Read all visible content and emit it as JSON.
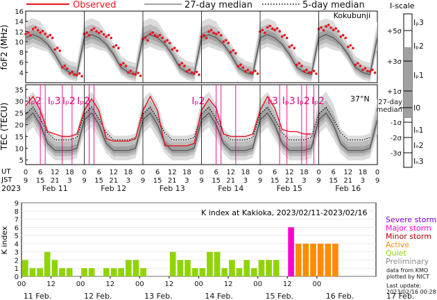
{
  "colors": {
    "observed": "#e8141c",
    "median27": "#444444",
    "band_light": "#dcdcdc",
    "band_mid": "#bdbdbd",
    "band_dark": "#a0a0a0",
    "magenta": "#e5007e",
    "kp_quiet": "#8fd400",
    "kp_active": "#ff8c00",
    "kp_major": "#ff00cc",
    "severe": "#7a00d6",
    "major": "#ff00cc",
    "minor": "#aa0000",
    "active": "#ff8c00",
    "quiet": "#8fd400",
    "prelim": "#888888"
  },
  "legend": {
    "observed": "Observed",
    "median27": "27-day median",
    "median5": "5-day median"
  },
  "top": {
    "station": "Kokubunji",
    "ylabel": "foF2 (MHz)",
    "yticks": [
      "4",
      "6",
      "8",
      "10",
      "12",
      "14",
      "16"
    ]
  },
  "mid": {
    "ylabel": "TEC (TECU)",
    "latitude": "37°N",
    "yticks": [
      "5",
      "10",
      "15",
      "20",
      "25",
      "30",
      "35"
    ],
    "event_labels": [
      "Iₚ2",
      "Iₚ3",
      "Iₚ2",
      "Iₚ2",
      "Iₚ2",
      "Iₗ3",
      "Iₚ3",
      "Iₚ2",
      "Iₚ2"
    ]
  },
  "time_axis": {
    "ut_label": "UT",
    "jst_label": "JST",
    "year": "2023",
    "ut_ticks": [
      "0",
      "6",
      "12",
      "18",
      "0",
      "6",
      "12",
      "18",
      "0",
      "6",
      "12",
      "18",
      "0",
      "6",
      "12",
      "18",
      "0",
      "6",
      "12",
      "18",
      "0",
      "6",
      "12",
      "18",
      "0"
    ],
    "jst_ticks": [
      "9",
      "15",
      "21",
      "3",
      "9",
      "15",
      "21",
      "3",
      "9",
      "15",
      "21",
      "3",
      "9",
      "15",
      "21",
      "3",
      "9",
      "15",
      "21",
      "3",
      "9",
      "15",
      "21",
      "3",
      "9"
    ],
    "days": [
      "Feb 11",
      "Feb 12",
      "Feb 13",
      "Feb 14",
      "Feb 15",
      "Feb 16"
    ]
  },
  "iscale": {
    "title": "I-scale",
    "labels": [
      "+5σ",
      "+3σ",
      "+1σ",
      "-1σ",
      "-2σ",
      "-3σ"
    ],
    "median": "27-day\nmedian",
    "bands": [
      "Iₚ3",
      "Iₚ2",
      "Iₚ1",
      "I0",
      "Iₙ1",
      "Iₙ2",
      "Iₙ3"
    ]
  },
  "kindex": {
    "title": "K index at Kakioka, 2023/02/11-2023/02/16",
    "ylabel": "K index",
    "yticks": [
      "0",
      "1",
      "2",
      "3",
      "4",
      "5",
      "6",
      "7",
      "8",
      "9"
    ],
    "xticks_hours": [
      "00",
      "12",
      "00",
      "12",
      "00",
      "12",
      "00",
      "12",
      "00",
      "12",
      "00"
    ],
    "dates": [
      "11 Feb.",
      "12 Feb.",
      "13 Feb.",
      "14 Feb.",
      "15 Feb.",
      "16 Feb.",
      "17 Feb."
    ],
    "legend": [
      "Severe storm",
      "Major storm",
      "Minor storm",
      "Active",
      "Quiet",
      "Preliminary"
    ],
    "source": "data from KMO\nplotted by NICT",
    "updated": "Last update:\n2023/02/16 00:28 UT"
  },
  "chart_data": [
    {
      "type": "line",
      "title": "foF2 (MHz)",
      "x": "UT hours since 2023-02-11 00:00",
      "series": [
        {
          "name": "Observed",
          "x": [
            0,
            3,
            6,
            9,
            12,
            15,
            18,
            21,
            24,
            27,
            30,
            33,
            36,
            39,
            42,
            45,
            48,
            51,
            54,
            57,
            60,
            63,
            66,
            69,
            72,
            75,
            78,
            81,
            84,
            87,
            90,
            93,
            96,
            99,
            102,
            105,
            108,
            111,
            114,
            117,
            120,
            123,
            126,
            129,
            132,
            135,
            138,
            141
          ],
          "values": [
            11.5,
            12.5,
            11.8,
            11,
            8.5,
            5,
            3.8,
            3.5,
            11.5,
            12.3,
            11.7,
            11,
            9,
            5.5,
            4,
            3.6,
            10.5,
            11.5,
            11,
            10,
            8.5,
            5.5,
            4.2,
            3.8,
            11,
            12,
            11.5,
            10,
            8,
            5.2,
            4.2,
            4,
            12,
            12.8,
            12.3,
            11,
            9,
            5.5,
            4.2,
            4,
            12.5,
            13,
            12.3,
            11,
            9,
            5.5,
            4.5,
            4.2
          ]
        },
        {
          "name": "27-day median",
          "x": [
            0,
            3,
            6,
            9,
            12,
            15,
            18,
            21,
            24,
            27,
            30,
            33,
            36,
            39,
            42,
            45,
            48,
            51,
            54,
            57,
            60,
            63,
            66,
            69,
            72,
            75,
            78,
            81,
            84,
            87,
            90,
            93,
            96,
            99,
            102,
            105,
            108,
            111,
            114,
            117,
            120,
            123,
            126,
            129,
            132,
            135,
            138,
            141
          ],
          "values": [
            10.8,
            11.4,
            10.8,
            9.5,
            7.5,
            5,
            4,
            3.6,
            10.8,
            11.4,
            10.8,
            9.5,
            7.5,
            5,
            4,
            3.6,
            10.8,
            11.4,
            10.8,
            9.5,
            7.5,
            5,
            4,
            3.6,
            10.8,
            11.4,
            10.8,
            9.5,
            7.5,
            5,
            4,
            3.6,
            10.8,
            11.4,
            10.8,
            9.5,
            7.5,
            5,
            4,
            3.6,
            10.8,
            11.4,
            10.8,
            9.5,
            7.5,
            5,
            4,
            3.6
          ]
        }
      ],
      "ylim": [
        2,
        16
      ]
    },
    {
      "type": "line",
      "title": "TEC (TECU)",
      "series": [
        {
          "name": "Observed",
          "x": [
            0,
            3,
            6,
            9,
            12,
            15,
            18,
            21,
            24,
            27,
            30,
            33,
            36,
            39,
            42,
            45,
            48,
            51,
            54,
            57,
            60,
            63,
            66,
            69,
            72,
            75,
            78,
            81,
            84,
            87,
            90,
            93,
            96,
            99,
            102,
            105,
            108,
            111,
            114,
            117
          ],
          "values": [
            28,
            32,
            26,
            17,
            16,
            15,
            15,
            16,
            26,
            31,
            26,
            14,
            13,
            13,
            13,
            14,
            26,
            32,
            26,
            11,
            11,
            11,
            11,
            12,
            26,
            31,
            27,
            16,
            15,
            15,
            15,
            16,
            26,
            32,
            27,
            18,
            17,
            17,
            16,
            16
          ]
        },
        {
          "name": "27-day median",
          "x": [
            0,
            3,
            6,
            9,
            12,
            15,
            18,
            21,
            24,
            27,
            30,
            33,
            36,
            39,
            42,
            45,
            48,
            51,
            54,
            57,
            60,
            63,
            66,
            69,
            72,
            75,
            78,
            81,
            84,
            87,
            90,
            93,
            96,
            99,
            102,
            105,
            108,
            111,
            114,
            117,
            120,
            123,
            126,
            129,
            132,
            135,
            138,
            141
          ],
          "values": [
            22,
            25,
            20,
            12,
            9,
            9,
            9,
            10,
            22,
            25,
            20,
            12,
            9,
            9,
            9,
            10,
            22,
            25,
            20,
            12,
            9,
            9,
            9,
            10,
            22,
            25,
            20,
            12,
            9,
            9,
            9,
            10,
            22,
            25,
            20,
            12,
            9,
            9,
            9,
            10,
            22,
            25,
            20,
            12,
            9,
            9,
            9,
            10
          ]
        }
      ],
      "ylim": [
        3,
        36
      ]
    },
    {
      "type": "bar",
      "title": "K index at Kakioka, 2023/02/11-2023/02/16",
      "x": "3-hour intervals from 2023-02-11 00 UT",
      "values": [
        2,
        1,
        1,
        3,
        2,
        1,
        1,
        0,
        1,
        1,
        0,
        1,
        1,
        1,
        2,
        2,
        1,
        0,
        0,
        0,
        3,
        2,
        2,
        1,
        1,
        3,
        3,
        1,
        2,
        1,
        2,
        1,
        2,
        2,
        2,
        0,
        6,
        4,
        4,
        4,
        4,
        4,
        4
      ],
      "ylim": [
        0,
        9
      ]
    }
  ]
}
